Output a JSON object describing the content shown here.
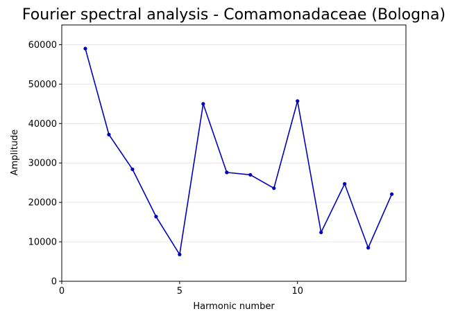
{
  "chart_data": {
    "type": "line",
    "title": "Fourier spectral analysis - Comamonadaceae (Bologna)",
    "xlabel": "Harmonic number",
    "ylabel": "Amplitude",
    "xlim": [
      0,
      14.6
    ],
    "ylim": [
      0,
      65000
    ],
    "xticks": [
      0,
      5,
      10
    ],
    "yticks": [
      0,
      10000,
      20000,
      30000,
      40000,
      50000,
      60000
    ],
    "grid": "horizontal",
    "line_color": "#0000bb",
    "series": [
      {
        "x": [
          1,
          2,
          3,
          4,
          5,
          6,
          7,
          8,
          9,
          10,
          11,
          12,
          13,
          14
        ],
        "values": [
          59000,
          37200,
          28400,
          16400,
          6800,
          45000,
          27600,
          27000,
          23600,
          45700,
          12400,
          24700,
          8500,
          22100
        ]
      }
    ]
  }
}
